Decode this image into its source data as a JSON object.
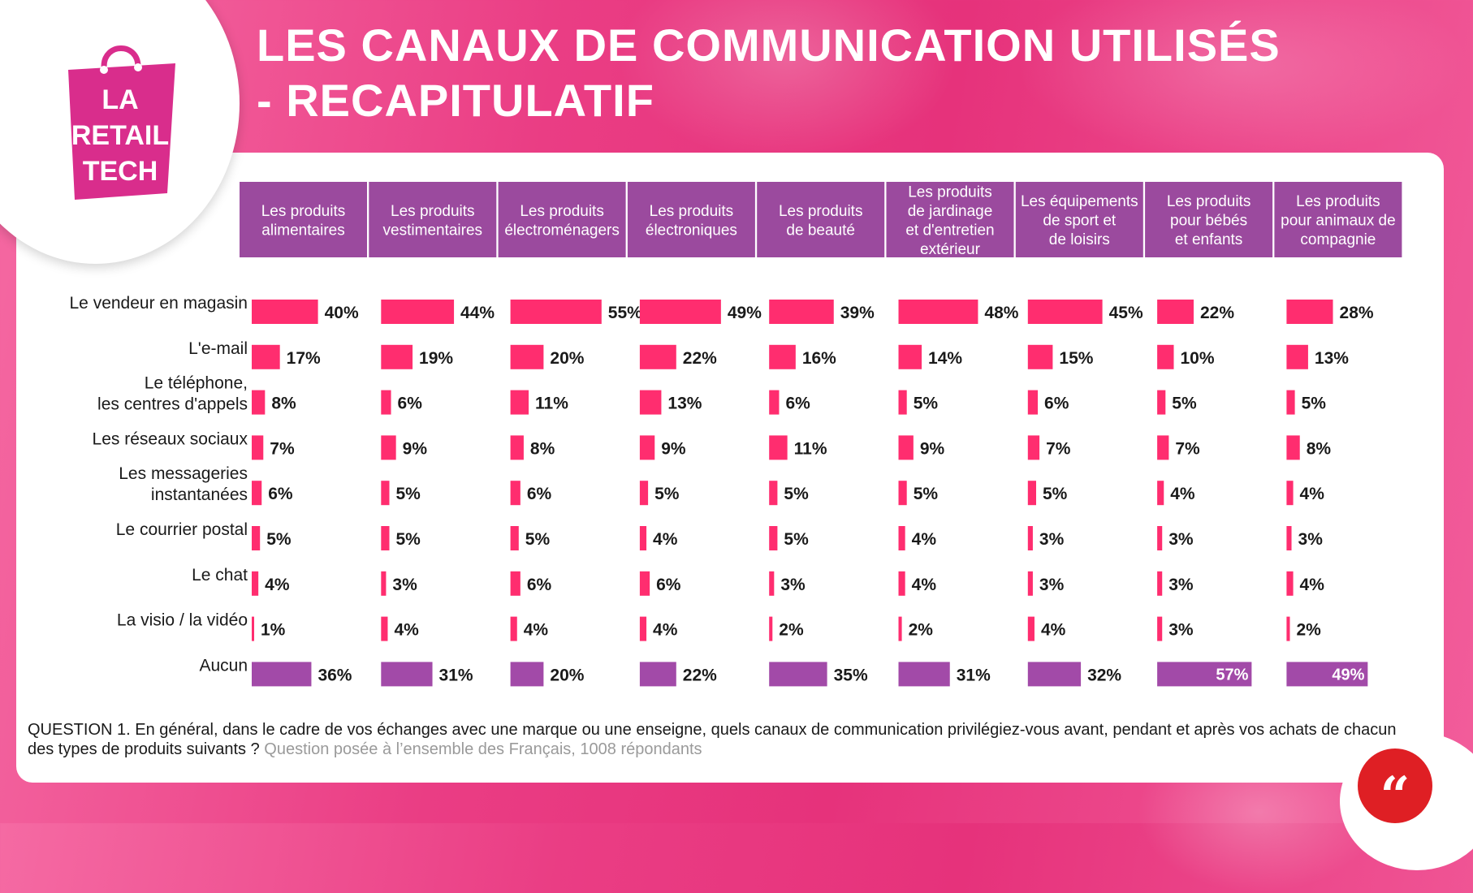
{
  "title": {
    "line1": "LES CANAUX DE COMMUNICATION UTILISÉS",
    "line2": "- RECAPITULATIF"
  },
  "logo": {
    "text": "LA RETAIL TECH",
    "icon": "shopping-bag-icon"
  },
  "question": {
    "main": "QUESTION 1. En général, dans le cadre de vos échanges avec une marque ou une enseigne, quels canaux de communication privilégiez-vous avant, pendant et après vos achats de chacun des types de produits suivants ?",
    "sub": "Question posée à l’ensemble des Français, 1008 répondants"
  },
  "quote_icon": {
    "name": "quote-icon",
    "glyph": "“"
  },
  "colors": {
    "header_bg": "#9b4a9e",
    "bar_pink": "#ff2d6f",
    "bar_purple": "#a24aa8",
    "accent_red": "#df1f24"
  },
  "chart_data": {
    "type": "bar",
    "unit": "%",
    "columns": [
      [
        "Les produits",
        "alimentaires"
      ],
      [
        "Les produits",
        "vestimentaires"
      ],
      [
        "Les produits",
        "électroménagers"
      ],
      [
        "Les produits",
        "électroniques"
      ],
      [
        "Les produits",
        "de beauté"
      ],
      [
        "Les produits",
        "de jardinage",
        "et d'entretien",
        "extérieur"
      ],
      [
        "Les équipements",
        "de sport et",
        "de loisirs"
      ],
      [
        "Les produits",
        "pour bébés",
        "et enfants"
      ],
      [
        "Les produits",
        "pour animaux de",
        "compagnie"
      ]
    ],
    "rows": [
      {
        "label": [
          "Le vendeur en magasin"
        ],
        "values": [
          40,
          44,
          55,
          49,
          39,
          48,
          45,
          22,
          28
        ]
      },
      {
        "label": [
          "L'e-mail"
        ],
        "values": [
          17,
          19,
          20,
          22,
          16,
          14,
          15,
          10,
          13
        ]
      },
      {
        "label": [
          "Le téléphone,",
          "les centres d'appels"
        ],
        "values": [
          8,
          6,
          11,
          13,
          6,
          5,
          6,
          5,
          5
        ]
      },
      {
        "label": [
          "Les réseaux sociaux"
        ],
        "values": [
          7,
          9,
          8,
          9,
          11,
          9,
          7,
          7,
          8
        ]
      },
      {
        "label": [
          "Les messageries",
          "instantanées"
        ],
        "values": [
          6,
          5,
          6,
          5,
          5,
          5,
          5,
          4,
          4
        ]
      },
      {
        "label": [
          "Le courrier postal"
        ],
        "values": [
          5,
          5,
          5,
          4,
          5,
          4,
          3,
          3,
          3
        ]
      },
      {
        "label": [
          "Le chat"
        ],
        "values": [
          4,
          3,
          6,
          6,
          3,
          4,
          3,
          3,
          4
        ]
      },
      {
        "label": [
          "La visio / la vidéo"
        ],
        "values": [
          1,
          4,
          4,
          4,
          2,
          2,
          4,
          3,
          2
        ]
      },
      {
        "label": [
          "Aucun"
        ],
        "values": [
          36,
          31,
          20,
          22,
          35,
          31,
          32,
          57,
          49
        ],
        "highlight": true
      }
    ]
  }
}
